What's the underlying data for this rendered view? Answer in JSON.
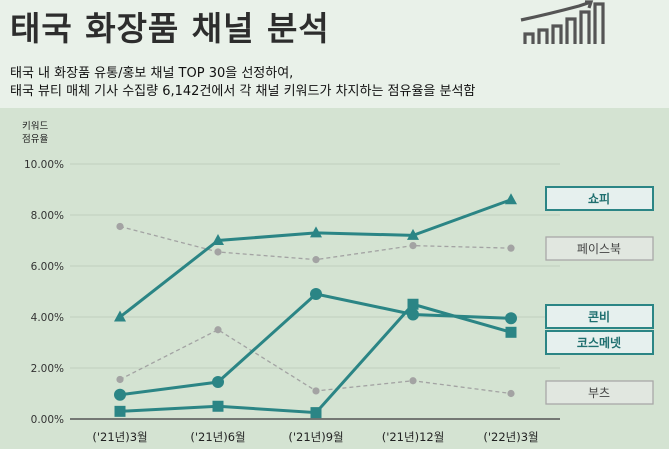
{
  "header": {
    "title": "태국 화장품 채널 분석",
    "subtitle_line1": "태국 내 화장품 유통/홍보 채널 TOP 30을 선정하여,",
    "subtitle_line2": "태국 뷰티 매체 기사 수집량 6,142건에서 각 채널 키워드가 차지하는 점유율을 분석함"
  },
  "icons": {
    "logo": "bar-chart-icon"
  },
  "chart_data": {
    "type": "line",
    "ylabel": [
      "키워드",
      "점유율"
    ],
    "categories": [
      "('21년)3월",
      "('21년)6월",
      "('21년)9월",
      "('21년)12월",
      "('22년)3월"
    ],
    "y_ticks": [
      "0.00%",
      "2.00%",
      "4.00%",
      "6.00%",
      "8.00%",
      "10.00%"
    ],
    "ylim": [
      0,
      10
    ],
    "grid": true,
    "series": [
      {
        "name": "쇼피",
        "values": [
          4.0,
          7.0,
          7.3,
          7.2,
          8.6
        ],
        "marker": "triangle",
        "style": "solid",
        "color": "#2b8585",
        "legend_boxed": true
      },
      {
        "name": "페이스북",
        "values": [
          7.55,
          6.55,
          6.25,
          6.8,
          6.7
        ],
        "marker": "circle",
        "style": "dashed",
        "color": "#a3a3a3",
        "legend_boxed": false
      },
      {
        "name": "콘비",
        "values": [
          0.95,
          1.45,
          4.9,
          4.1,
          3.95
        ],
        "marker": "circle",
        "style": "solid",
        "color": "#2b8585",
        "legend_boxed": true
      },
      {
        "name": "코스메넷",
        "values": [
          0.3,
          0.5,
          0.25,
          4.5,
          3.4
        ],
        "marker": "square",
        "style": "solid",
        "color": "#2b8585",
        "legend_boxed": true
      },
      {
        "name": "부츠",
        "values": [
          1.55,
          3.5,
          1.1,
          1.5,
          1.0
        ],
        "marker": "circle",
        "style": "dashed",
        "color": "#a3a3a3",
        "legend_boxed": false
      }
    ]
  },
  "colors": {
    "accent": "#2b8585",
    "muted": "#a3a3a3",
    "chart_bg": "#d4e3d2",
    "header_bg": "#e9f1e9"
  }
}
